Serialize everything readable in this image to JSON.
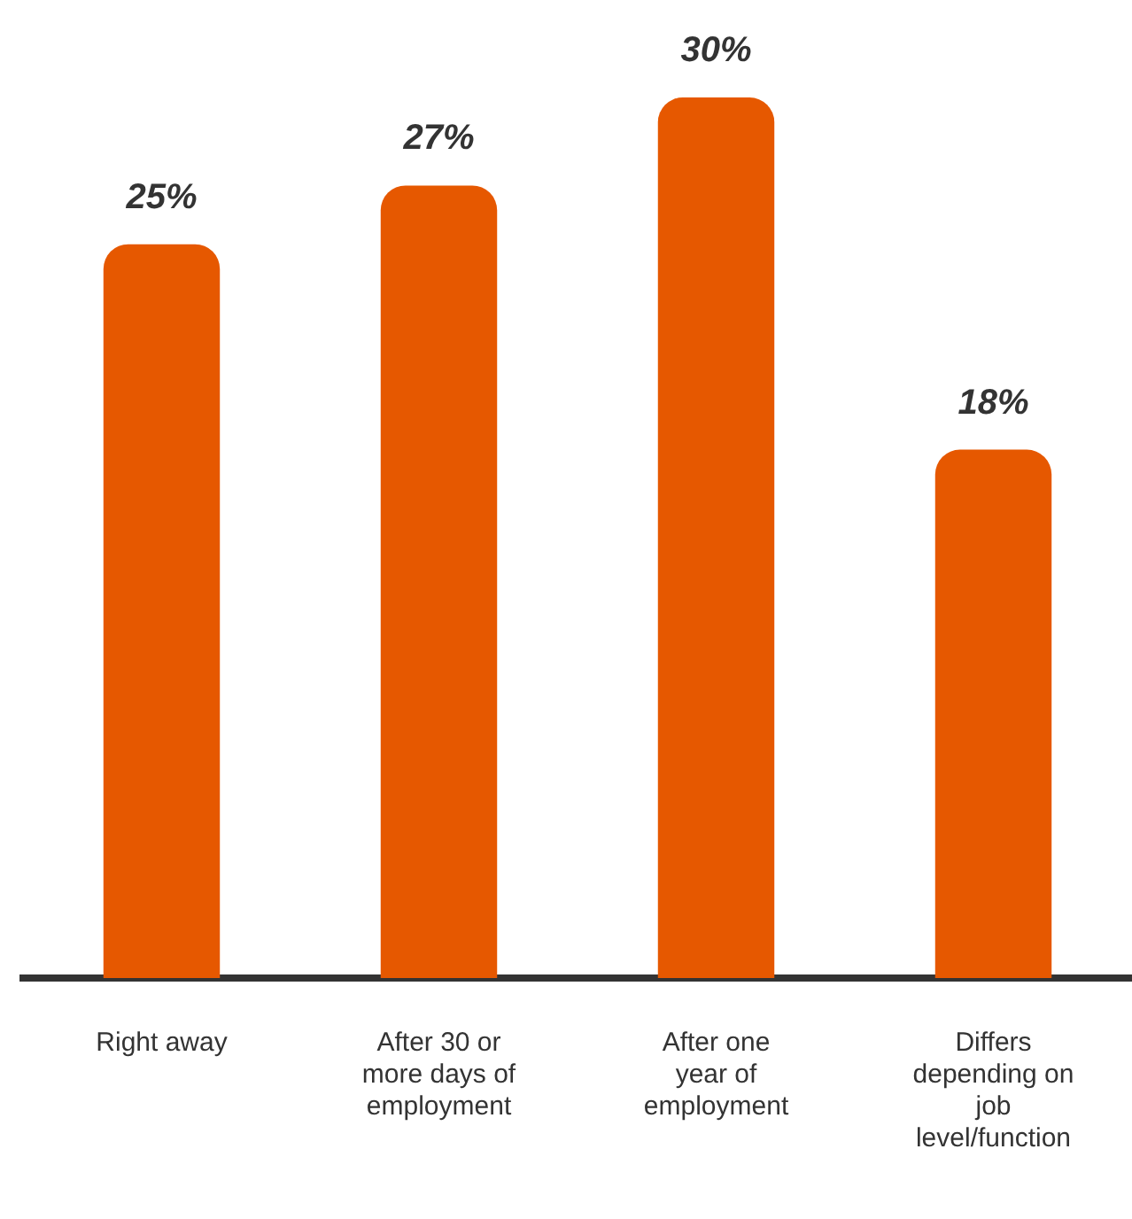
{
  "chart_data": {
    "type": "bar",
    "categories": [
      "Right away",
      "After 30 or more days of employment",
      "After one year of employment",
      "Differs depending on job level/function"
    ],
    "values": [
      25,
      27,
      30,
      18
    ],
    "color": "#e65800",
    "value_labels": [
      "25%",
      "27%",
      "30%",
      "18%"
    ]
  }
}
